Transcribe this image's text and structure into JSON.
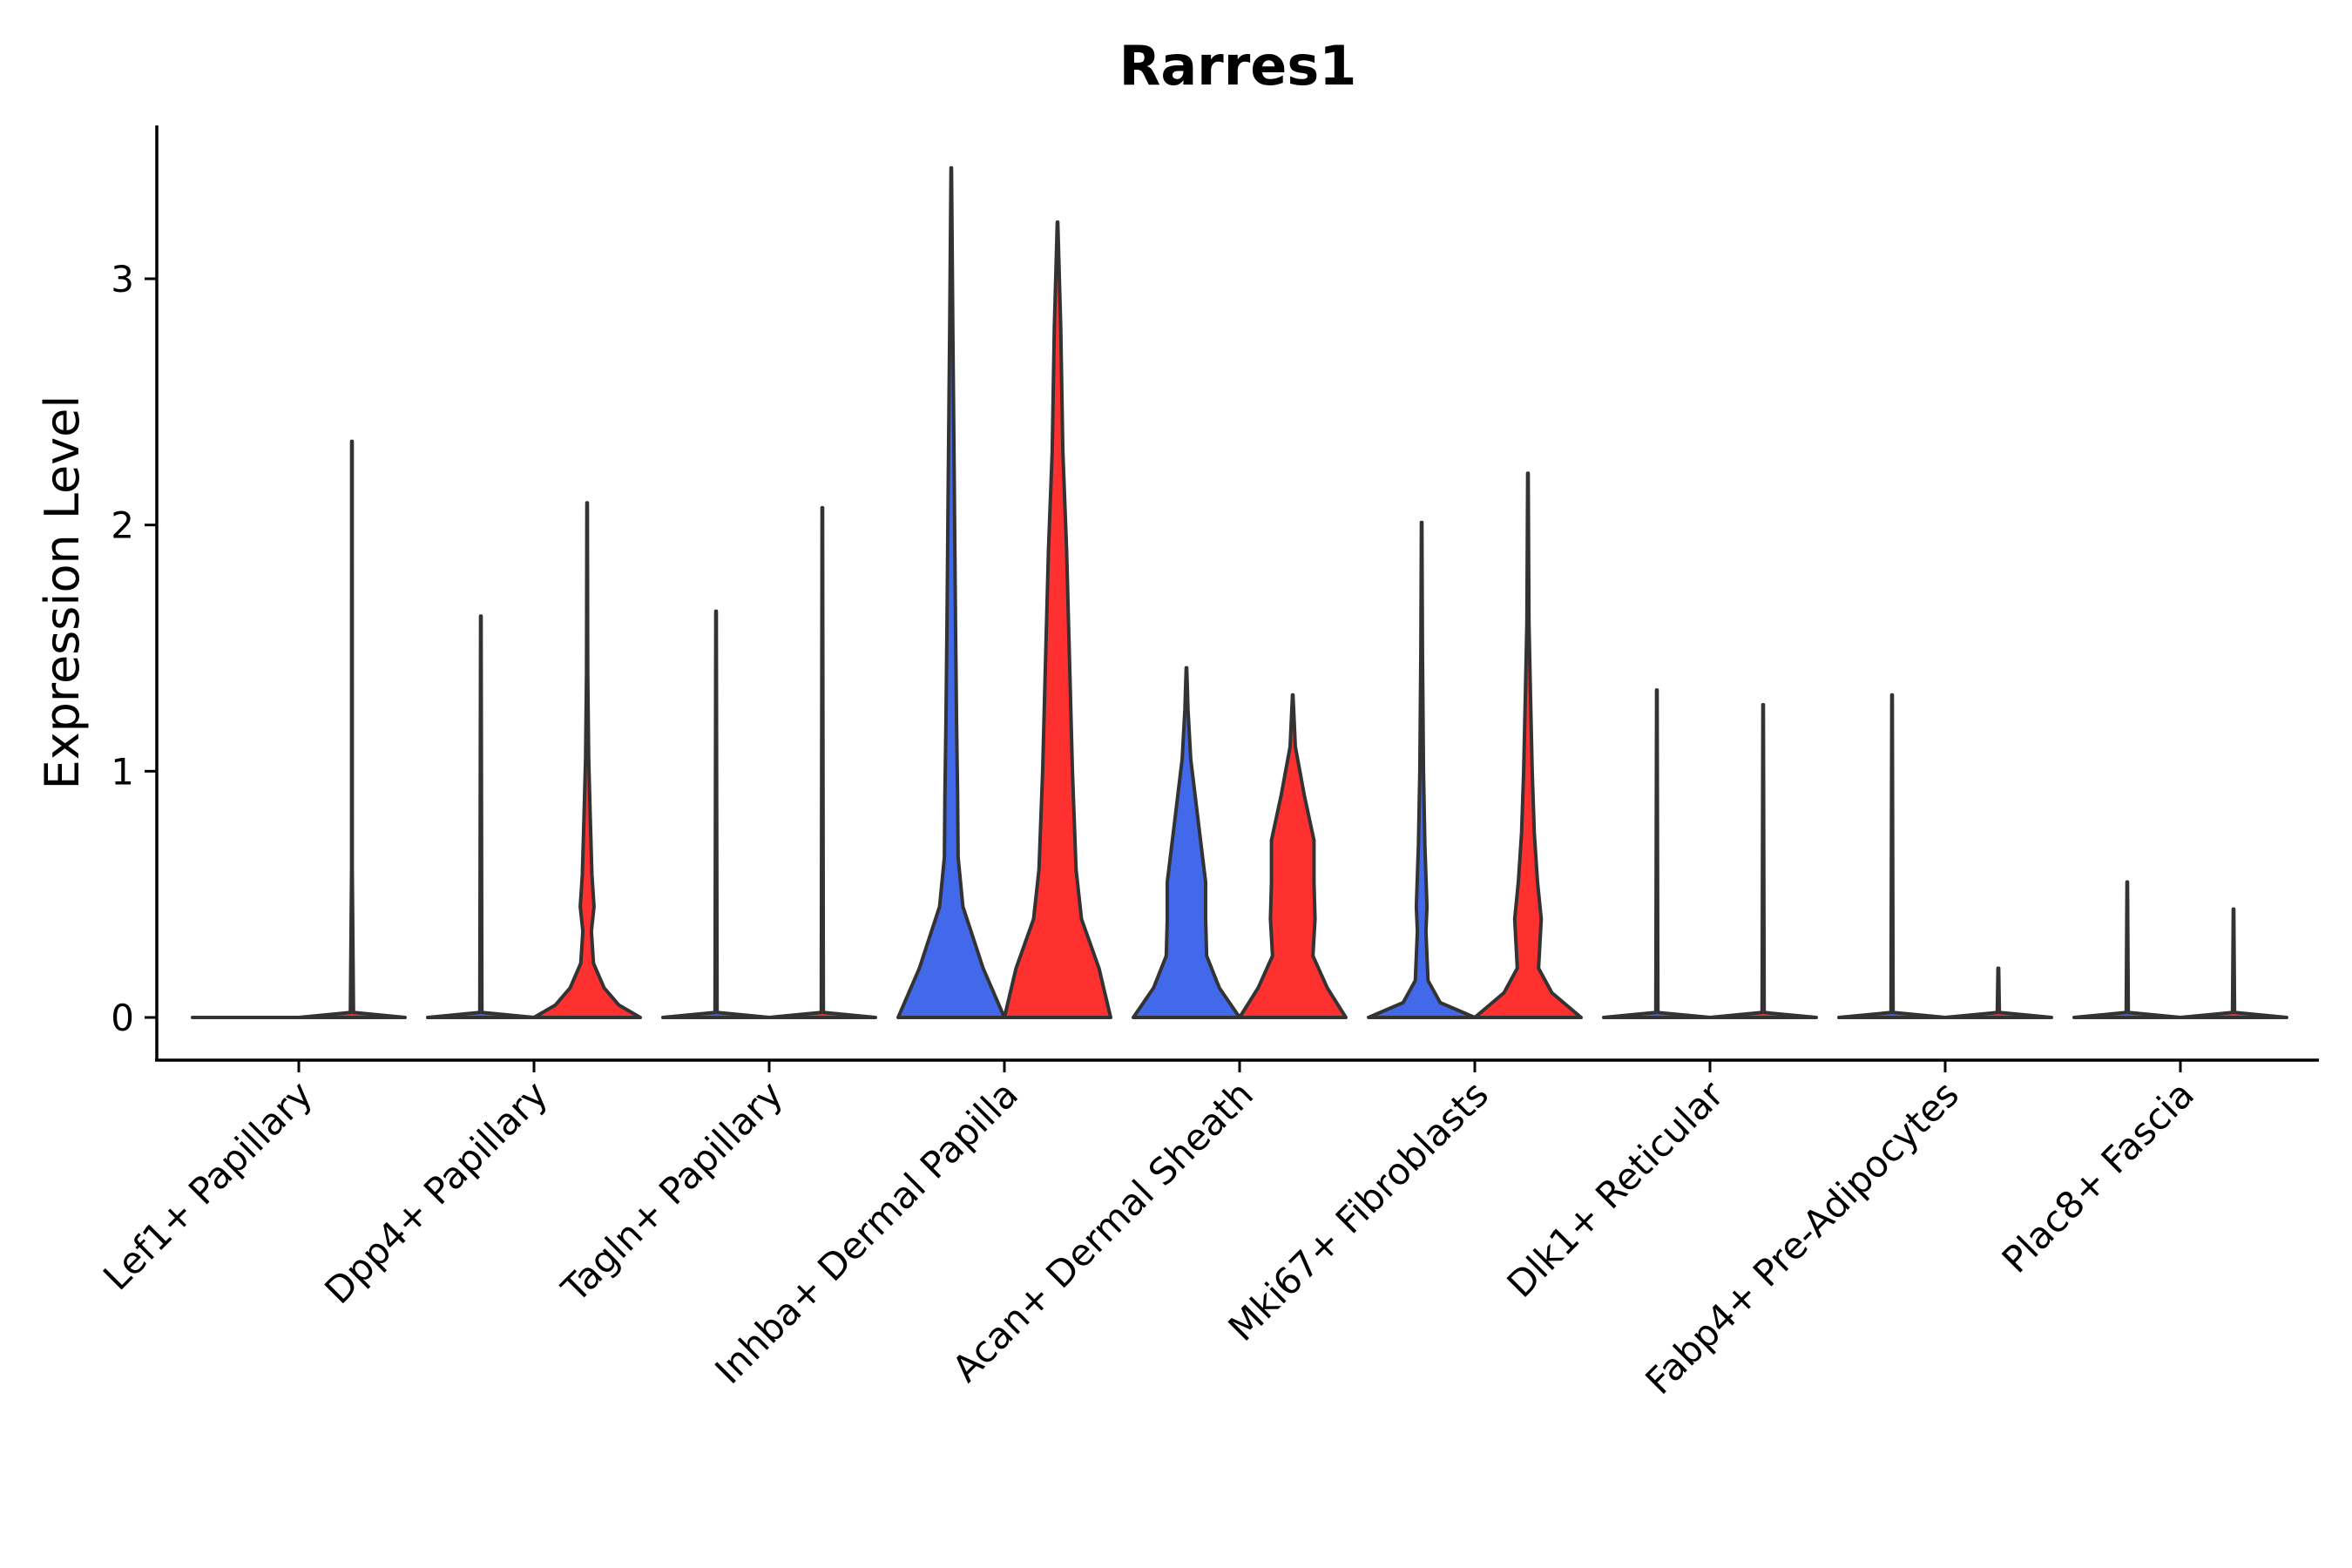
{
  "chart_data": {
    "type": "violin",
    "title": "Rarres1",
    "xlabel": "",
    "ylabel": "Expression Level",
    "ylim": [
      -0.17,
      3.62
    ],
    "yticks": [
      0,
      1,
      2,
      3
    ],
    "grid": false,
    "legend": "none",
    "categories": [
      "Lef1+ Papillary",
      "Dpp4+ Papillary",
      "Tagln+ Papillary",
      "Inhba+ Dermal Papilla",
      "Acan+ Dermal Sheath",
      "Mki67+ Fibroblasts",
      "Dlk1+ Reticular",
      "Fabp4+ Pre-Adipocytes",
      "Plac8+ Fascia"
    ],
    "series": [
      {
        "name": "group-blue",
        "color": "#4169E9",
        "max_values": [
          0.0,
          1.63,
          1.65,
          3.45,
          1.42,
          2.01,
          1.33,
          1.31,
          0.55
        ]
      },
      {
        "name": "group-red",
        "color": "#FF3030",
        "max_values": [
          2.34,
          2.09,
          2.07,
          3.23,
          1.31,
          2.21,
          1.27,
          0.2,
          0.44
        ]
      }
    ],
    "violins": [
      {
        "category": "Lef1+ Papillary",
        "series": "group-blue",
        "max": 0.0,
        "density": [
          [
            0,
            1
          ]
        ]
      },
      {
        "category": "Lef1+ Papillary",
        "series": "group-red",
        "max": 2.34,
        "density": [
          [
            0,
            1
          ],
          [
            0.02,
            0.03
          ],
          [
            0.6,
            0.006
          ],
          [
            2.34,
            0.005
          ]
        ]
      },
      {
        "category": "Dpp4+ Papillary",
        "series": "group-blue",
        "max": 1.63,
        "density": [
          [
            0,
            1
          ],
          [
            0.02,
            0.02
          ],
          [
            1.63,
            0.005
          ]
        ]
      },
      {
        "category": "Dpp4+ Papillary",
        "series": "group-red",
        "max": 2.09,
        "density": [
          [
            0,
            1
          ],
          [
            0.05,
            0.6
          ],
          [
            0.12,
            0.32
          ],
          [
            0.22,
            0.12
          ],
          [
            0.35,
            0.08
          ],
          [
            0.45,
            0.13
          ],
          [
            0.58,
            0.09
          ],
          [
            0.8,
            0.06
          ],
          [
            1.05,
            0.03
          ],
          [
            1.4,
            0.012
          ],
          [
            2.09,
            0.005
          ]
        ]
      },
      {
        "category": "Tagln+ Papillary",
        "series": "group-blue",
        "max": 1.65,
        "density": [
          [
            0,
            1
          ],
          [
            0.02,
            0.02
          ],
          [
            1.65,
            0.005
          ]
        ]
      },
      {
        "category": "Tagln+ Papillary",
        "series": "group-red",
        "max": 2.07,
        "density": [
          [
            0,
            1
          ],
          [
            0.02,
            0.02
          ],
          [
            2.07,
            0.005
          ]
        ]
      },
      {
        "category": "Inhba+ Dermal Papilla",
        "series": "group-blue",
        "max": 3.45,
        "density": [
          [
            0,
            1
          ],
          [
            0.2,
            0.6
          ],
          [
            0.45,
            0.22
          ],
          [
            0.65,
            0.13
          ],
          [
            0.9,
            0.12
          ],
          [
            1.2,
            0.1
          ],
          [
            1.6,
            0.08
          ],
          [
            2.2,
            0.055
          ],
          [
            2.8,
            0.03
          ],
          [
            3.45,
            0.005
          ]
        ]
      },
      {
        "category": "Inhba+ Dermal Papilla",
        "series": "group-red",
        "max": 3.23,
        "density": [
          [
            0,
            1
          ],
          [
            0.2,
            0.78
          ],
          [
            0.4,
            0.45
          ],
          [
            0.6,
            0.35
          ],
          [
            1.0,
            0.28
          ],
          [
            1.5,
            0.22
          ],
          [
            1.9,
            0.17
          ],
          [
            2.3,
            0.1
          ],
          [
            2.8,
            0.06
          ],
          [
            3.23,
            0.005
          ]
        ]
      },
      {
        "category": "Acan+ Dermal Sheath",
        "series": "group-blue",
        "max": 1.42,
        "density": [
          [
            0,
            1
          ],
          [
            0.12,
            0.62
          ],
          [
            0.25,
            0.38
          ],
          [
            0.4,
            0.36
          ],
          [
            0.55,
            0.36
          ],
          [
            0.8,
            0.22
          ],
          [
            1.05,
            0.08
          ],
          [
            1.25,
            0.03
          ],
          [
            1.42,
            0.005
          ]
        ]
      },
      {
        "category": "Acan+ Dermal Sheath",
        "series": "group-red",
        "max": 1.31,
        "density": [
          [
            0,
            1
          ],
          [
            0.12,
            0.65
          ],
          [
            0.25,
            0.38
          ],
          [
            0.4,
            0.42
          ],
          [
            0.55,
            0.4
          ],
          [
            0.72,
            0.4
          ],
          [
            0.9,
            0.22
          ],
          [
            1.1,
            0.05
          ],
          [
            1.31,
            0.005
          ]
        ]
      },
      {
        "category": "Mki67+ Fibroblasts",
        "series": "group-blue",
        "max": 2.01,
        "density": [
          [
            0,
            1
          ],
          [
            0.06,
            0.35
          ],
          [
            0.15,
            0.12
          ],
          [
            0.35,
            0.08
          ],
          [
            0.45,
            0.1
          ],
          [
            0.7,
            0.06
          ],
          [
            1.0,
            0.035
          ],
          [
            1.5,
            0.015
          ],
          [
            2.01,
            0.005
          ]
        ]
      },
      {
        "category": "Mki67+ Fibroblasts",
        "series": "group-red",
        "max": 2.21,
        "density": [
          [
            0,
            1
          ],
          [
            0.1,
            0.45
          ],
          [
            0.2,
            0.2
          ],
          [
            0.4,
            0.25
          ],
          [
            0.55,
            0.18
          ],
          [
            0.75,
            0.12
          ],
          [
            1.0,
            0.08
          ],
          [
            1.3,
            0.05
          ],
          [
            1.6,
            0.02
          ],
          [
            2.21,
            0.005
          ]
        ]
      },
      {
        "category": "Dlk1+ Reticular",
        "series": "group-blue",
        "max": 1.33,
        "density": [
          [
            0,
            1
          ],
          [
            0.02,
            0.02
          ],
          [
            1.33,
            0.005
          ]
        ]
      },
      {
        "category": "Dlk1+ Reticular",
        "series": "group-red",
        "max": 1.27,
        "density": [
          [
            0,
            1
          ],
          [
            0.02,
            0.02
          ],
          [
            1.27,
            0.005
          ]
        ]
      },
      {
        "category": "Fabp4+ Pre-Adipocytes",
        "series": "group-blue",
        "max": 1.31,
        "density": [
          [
            0,
            1
          ],
          [
            0.02,
            0.02
          ],
          [
            1.31,
            0.005
          ]
        ]
      },
      {
        "category": "Fabp4+ Pre-Adipocytes",
        "series": "group-red",
        "max": 0.2,
        "density": [
          [
            0,
            1
          ],
          [
            0.02,
            0.02
          ],
          [
            0.2,
            0.006
          ]
        ]
      },
      {
        "category": "Plac8+ Fascia",
        "series": "group-blue",
        "max": 0.55,
        "density": [
          [
            0,
            1
          ],
          [
            0.02,
            0.02
          ],
          [
            0.55,
            0.005
          ]
        ]
      },
      {
        "category": "Plac8+ Fascia",
        "series": "group-red",
        "max": 0.44,
        "density": [
          [
            0,
            1
          ],
          [
            0.02,
            0.02
          ],
          [
            0.44,
            0.005
          ]
        ]
      }
    ]
  }
}
